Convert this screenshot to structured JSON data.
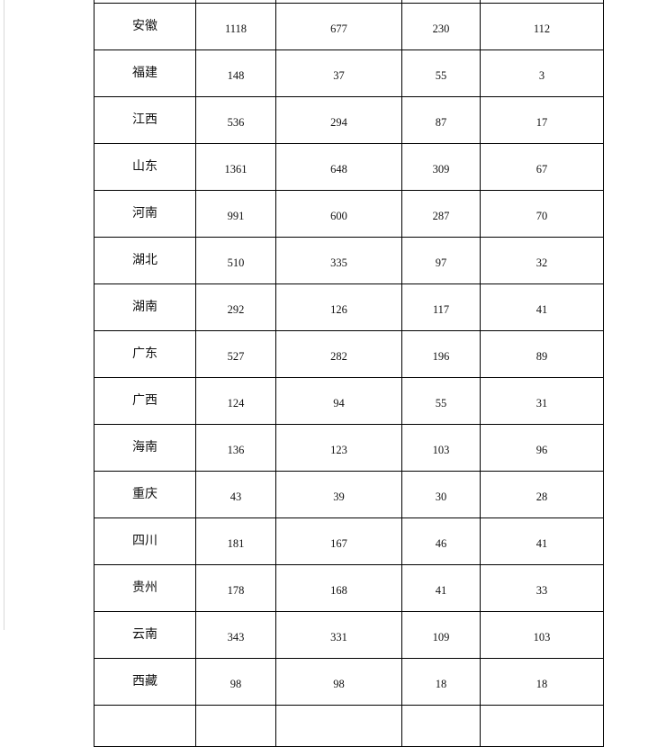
{
  "table": {
    "rows": [
      {
        "province": "安徽",
        "values": [
          "1118",
          "677",
          "230",
          "112"
        ]
      },
      {
        "province": "福建",
        "values": [
          "148",
          "37",
          "55",
          "3"
        ]
      },
      {
        "province": "江西",
        "values": [
          "536",
          "294",
          "87",
          "17"
        ]
      },
      {
        "province": "山东",
        "values": [
          "1361",
          "648",
          "309",
          "67"
        ]
      },
      {
        "province": "河南",
        "values": [
          "991",
          "600",
          "287",
          "70"
        ]
      },
      {
        "province": "湖北",
        "values": [
          "510",
          "335",
          "97",
          "32"
        ]
      },
      {
        "province": "湖南",
        "values": [
          "292",
          "126",
          "117",
          "41"
        ]
      },
      {
        "province": "广东",
        "values": [
          "527",
          "282",
          "196",
          "89"
        ]
      },
      {
        "province": "广西",
        "values": [
          "124",
          "94",
          "55",
          "31"
        ]
      },
      {
        "province": "海南",
        "values": [
          "136",
          "123",
          "103",
          "96"
        ]
      },
      {
        "province": "重庆",
        "values": [
          "43",
          "39",
          "30",
          "28"
        ]
      },
      {
        "province": "四川",
        "values": [
          "181",
          "167",
          "46",
          "41"
        ]
      },
      {
        "province": "贵州",
        "values": [
          "178",
          "168",
          "41",
          "33"
        ]
      },
      {
        "province": "云南",
        "values": [
          "343",
          "331",
          "109",
          "103"
        ]
      },
      {
        "province": "西藏",
        "values": [
          "98",
          "98",
          "18",
          "18"
        ]
      }
    ]
  }
}
